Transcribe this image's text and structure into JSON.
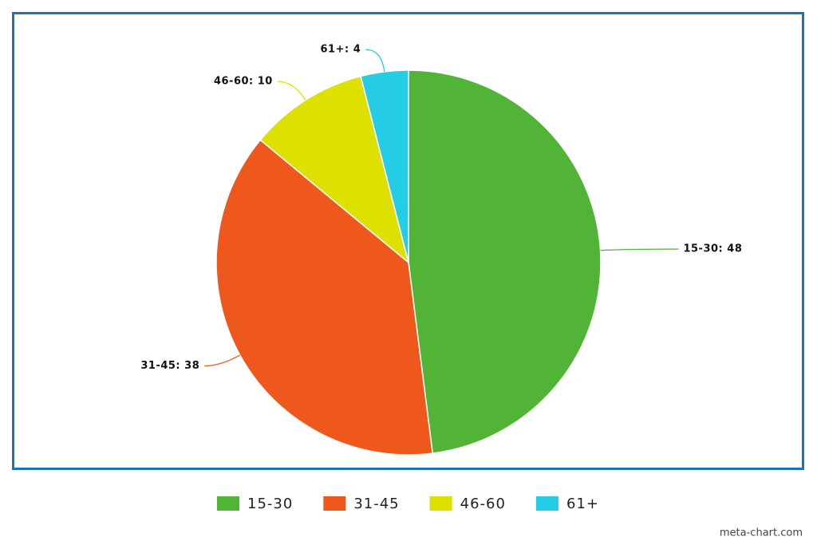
{
  "chart_data": {
    "type": "pie",
    "categories": [
      "15-30",
      "31-45",
      "46-60",
      "61+"
    ],
    "values": [
      48,
      38,
      10,
      4
    ],
    "value_labels": [
      "15-30: 48",
      "31-45: 38",
      "46-60: 10",
      "61+: 4"
    ],
    "colors": [
      "#52b436",
      "#ee581c",
      "#dde000",
      "#25cce6"
    ],
    "legend": "bottom",
    "watermark": "meta-chart.com"
  }
}
